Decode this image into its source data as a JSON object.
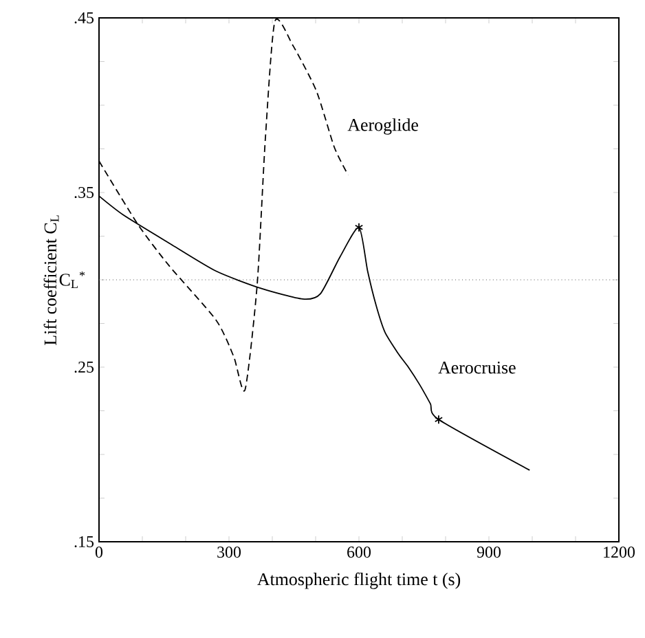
{
  "chart_data": {
    "type": "line",
    "xlabel": "Atmospheric flight time  t (s)",
    "ylabel": "Lift coefficient  C$_{L}$",
    "xlim": [
      0,
      1200
    ],
    "ylim": [
      0.15,
      0.45
    ],
    "xticks": [
      0,
      {
        "value": 100,
        "label": null
      },
      {
        "value": 200,
        "label": null
      },
      300,
      {
        "value": 400,
        "label": null
      },
      {
        "value": 500,
        "label": null
      },
      600,
      {
        "value": 700,
        "label": null
      },
      {
        "value": 800,
        "label": null
      },
      900,
      {
        "value": 1000,
        "label": null
      },
      {
        "value": 1100,
        "label": null
      },
      1200
    ],
    "yticks": [
      {
        "value": 0.15,
        "label": ".15"
      },
      {
        "value": 0.175,
        "label": null
      },
      {
        "value": 0.2,
        "label": null
      },
      {
        "value": 0.225,
        "label": null
      },
      {
        "value": 0.25,
        "label": ".25"
      },
      {
        "value": 0.275,
        "label": null
      },
      {
        "value": 0.3,
        "label": null
      },
      {
        "value": 0.325,
        "label": null
      },
      {
        "value": 0.35,
        "label": ".35"
      },
      {
        "value": 0.375,
        "label": null
      },
      {
        "value": 0.4,
        "label": null
      },
      {
        "value": 0.425,
        "label": null
      },
      {
        "value": 0.45,
        "label": ".45"
      }
    ],
    "ref_lines": [
      {
        "axis": "y",
        "value": 0.3,
        "label": "C$_{L}$$^{*}$",
        "line_style": "dotted",
        "color": "#555555"
      }
    ],
    "series": [
      {
        "name": "Aeroglide",
        "color": "#000000",
        "line_style": "dashed",
        "x": [
          0,
          89,
          162,
          270,
          311,
          337,
          365,
          384,
          406,
          448,
          502,
          543,
          575
        ],
        "values": [
          0.368,
          0.332,
          0.308,
          0.277,
          0.256,
          0.237,
          0.297,
          0.381,
          0.448,
          0.434,
          0.408,
          0.376,
          0.36
        ]
      },
      {
        "name": "Aerocruise",
        "color": "#000000",
        "line_style": "solid",
        "x": [
          0,
          57,
          162,
          270,
          375,
          470,
          511,
          556,
          600,
          620,
          640,
          660,
          690,
          714,
          740,
          765,
          784,
          994
        ],
        "values": [
          0.348,
          0.337,
          0.321,
          0.305,
          0.295,
          0.289,
          0.292,
          0.313,
          0.33,
          0.305,
          0.285,
          0.27,
          0.258,
          0.25,
          0.24,
          0.229,
          0.22,
          0.191
        ]
      },
      {
        "type": "scatter",
        "marker": "cross",
        "color": "#000000",
        "x": [
          600,
          784
        ],
        "values": [
          0.33,
          0.22
        ]
      }
    ]
  }
}
